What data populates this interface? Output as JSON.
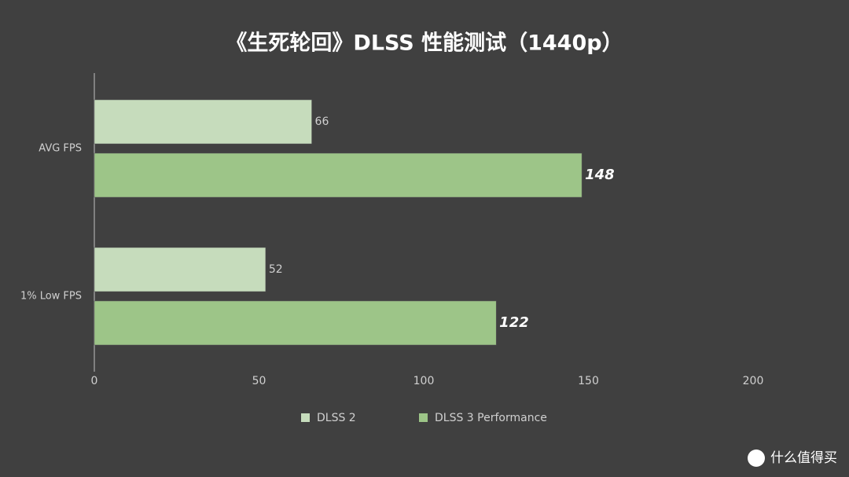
{
  "chart_data": {
    "type": "hbar",
    "title": "《生死轮回》DLSS 性能测试（1440p）",
    "categories": [
      "AVG FPS",
      "1% Low FPS"
    ],
    "series": [
      {
        "name": "DLSS 2",
        "color": "#c6dcbc",
        "values": [
          66,
          52
        ]
      },
      {
        "name": "DLSS 3 Performance",
        "color": "#9dc588",
        "values": [
          148,
          122
        ]
      }
    ],
    "xlim": [
      0,
      200
    ],
    "xticks": [
      0,
      50,
      100,
      150,
      200
    ],
    "legend": "bottom"
  },
  "watermark": "什么值得买"
}
